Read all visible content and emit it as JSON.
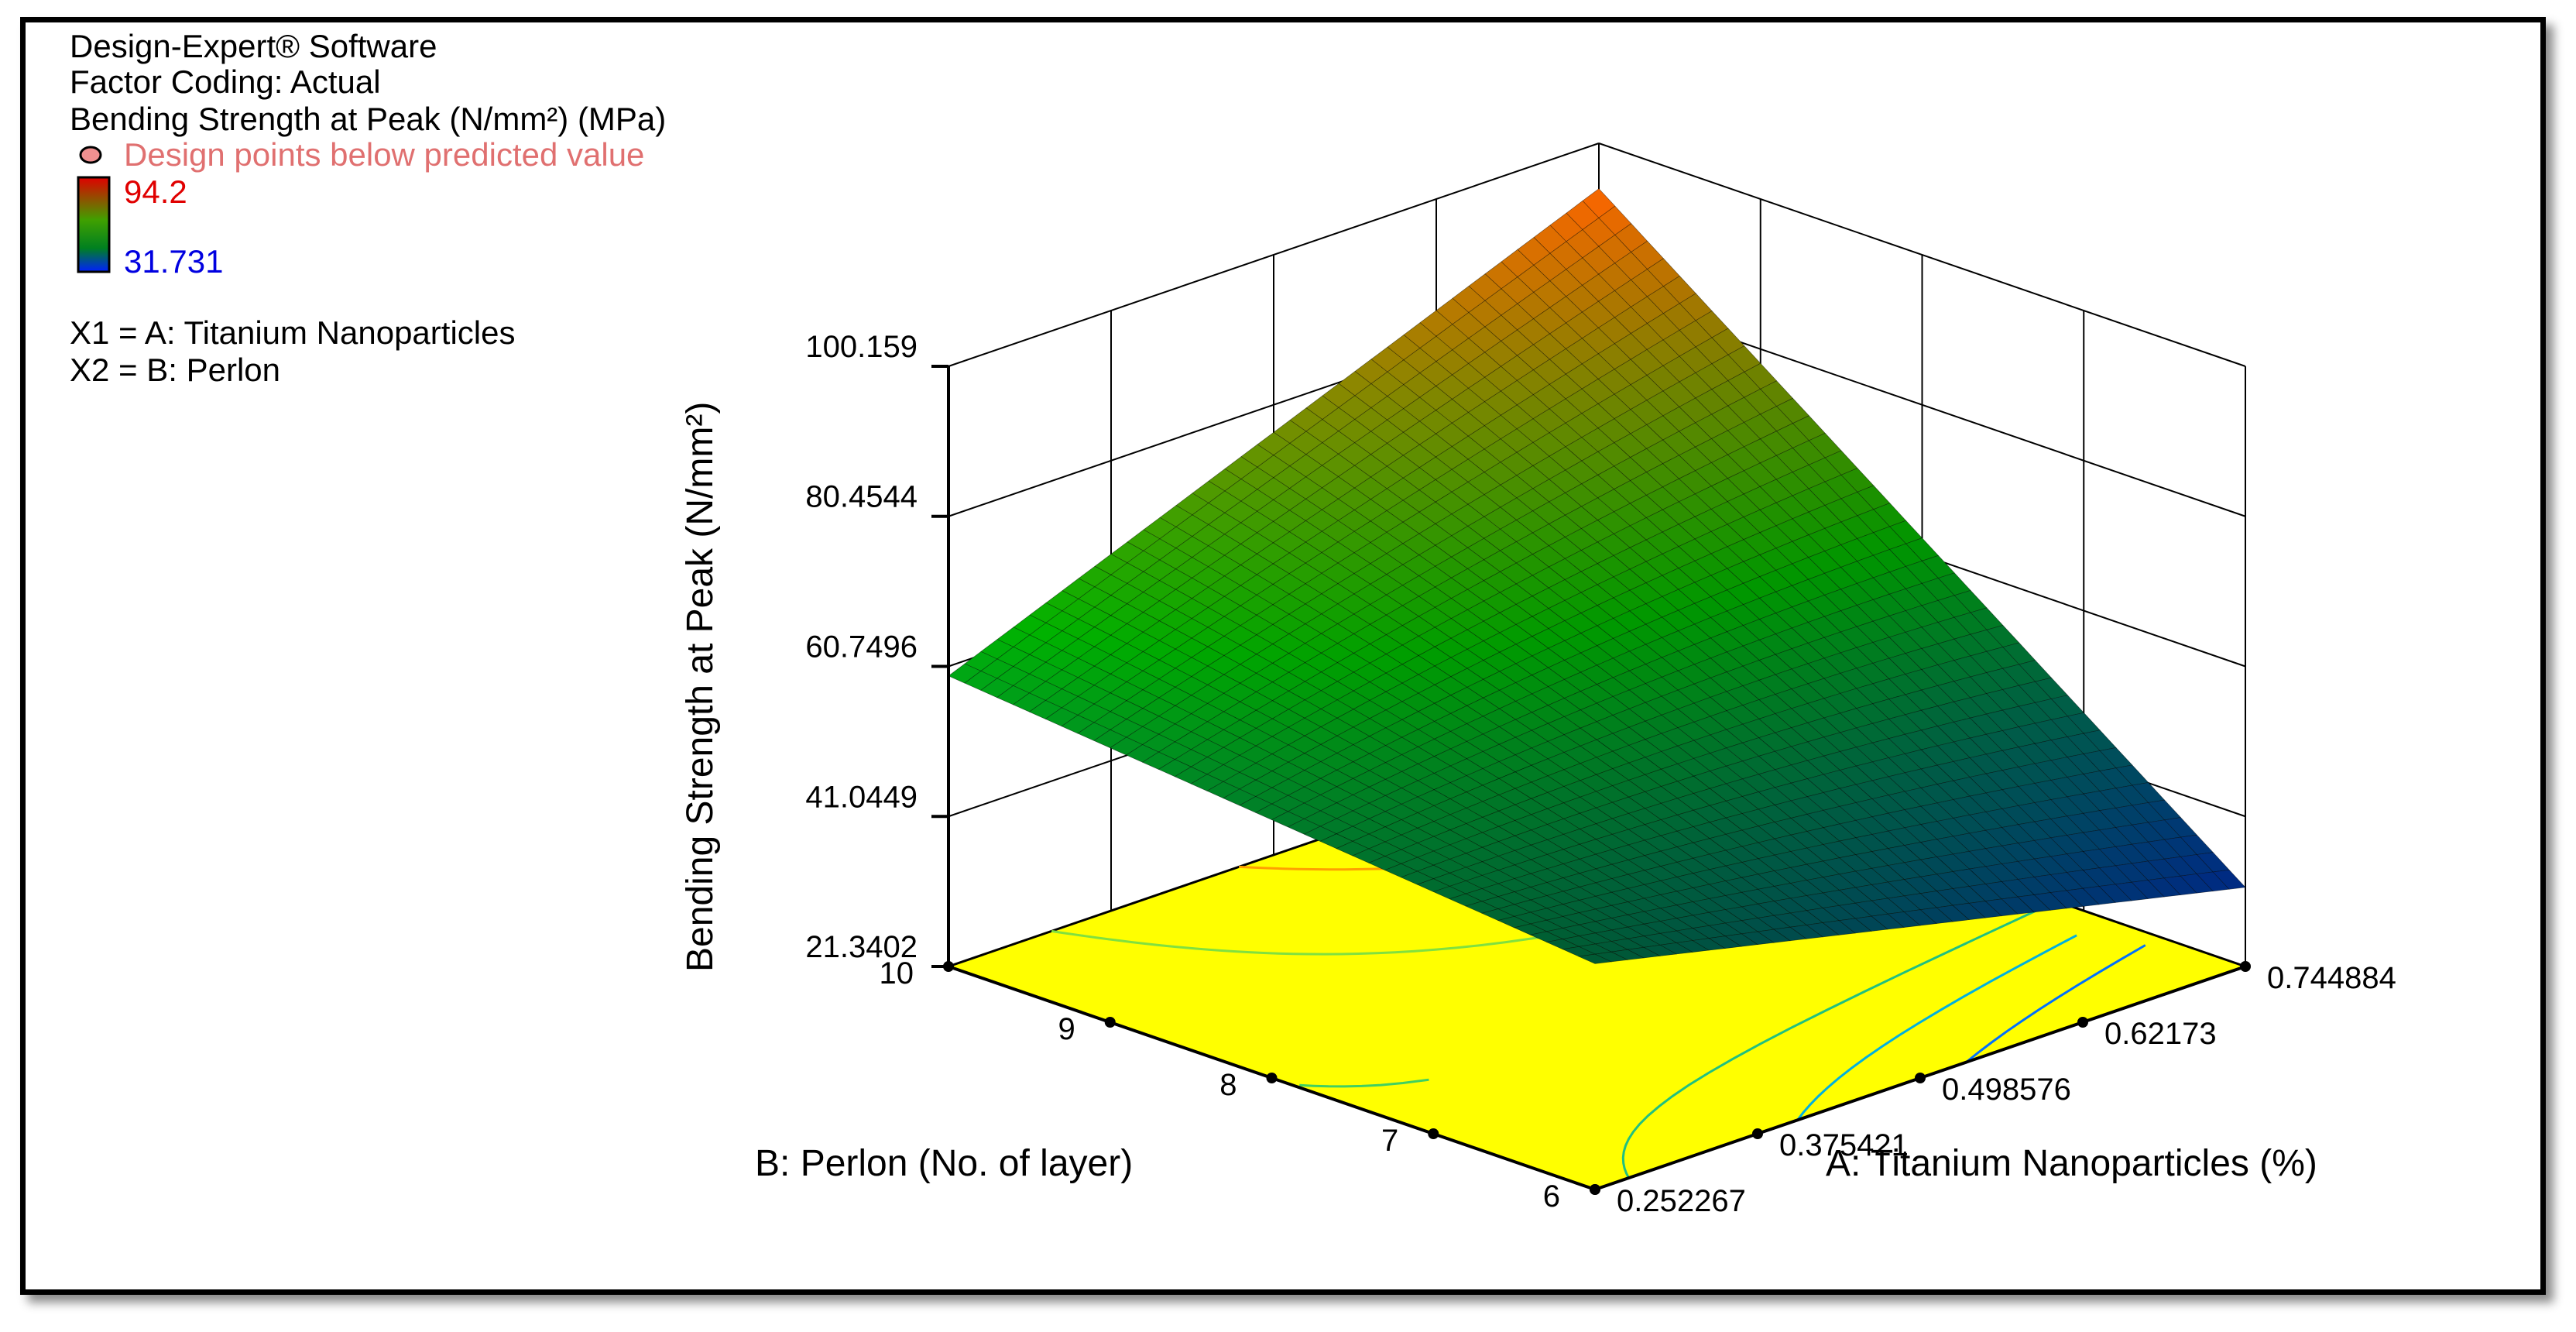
{
  "header": {
    "software": "Design-Expert® Software",
    "coding": "Factor Coding: Actual",
    "response": "Bending Strength at Peak   (N/mm²) (MPa)",
    "design_points": "Design points below predicted value",
    "color_max": "94.2",
    "color_min": "31.731",
    "x1": "X1 = A: Titanium Nanoparticles",
    "x2": "X2 = B: Perlon"
  },
  "colors": {
    "high": "#ff0000",
    "mid": "#008000",
    "low": "#0000ff",
    "contour_floor": "#ffff00",
    "design_point_text": "#e07070"
  },
  "chart_data": {
    "type": "surface",
    "zlabel": "Bending Strength at Peak   (N/mm²)",
    "xlabel": "A: Titanium Nanoparticles (%)",
    "ylabel": "B: Perlon (No. of layer)",
    "z_ticks": [
      "21.3402",
      "41.0449",
      "60.7496",
      "80.4544",
      "100.159"
    ],
    "x_ticks": [
      "0.252267",
      "0.375421",
      "0.498576",
      "0.62173",
      "0.744884"
    ],
    "y_ticks": [
      "6",
      "7",
      "8",
      "9",
      "10"
    ],
    "zlim": [
      21.3402,
      100.159
    ],
    "xlim": [
      0.252267,
      0.744884
    ],
    "ylim": [
      6,
      10
    ],
    "corners": [
      {
        "A": 0.252267,
        "B": 10,
        "value": 59.5
      },
      {
        "A": 0.252267,
        "B": 6,
        "value": 51.0
      },
      {
        "A": 0.744884,
        "B": 6,
        "value": 31.731
      },
      {
        "A": 0.744884,
        "B": 10,
        "value": 94.2
      }
    ],
    "color_range": [
      31.731,
      94.2
    ],
    "grid": true
  }
}
